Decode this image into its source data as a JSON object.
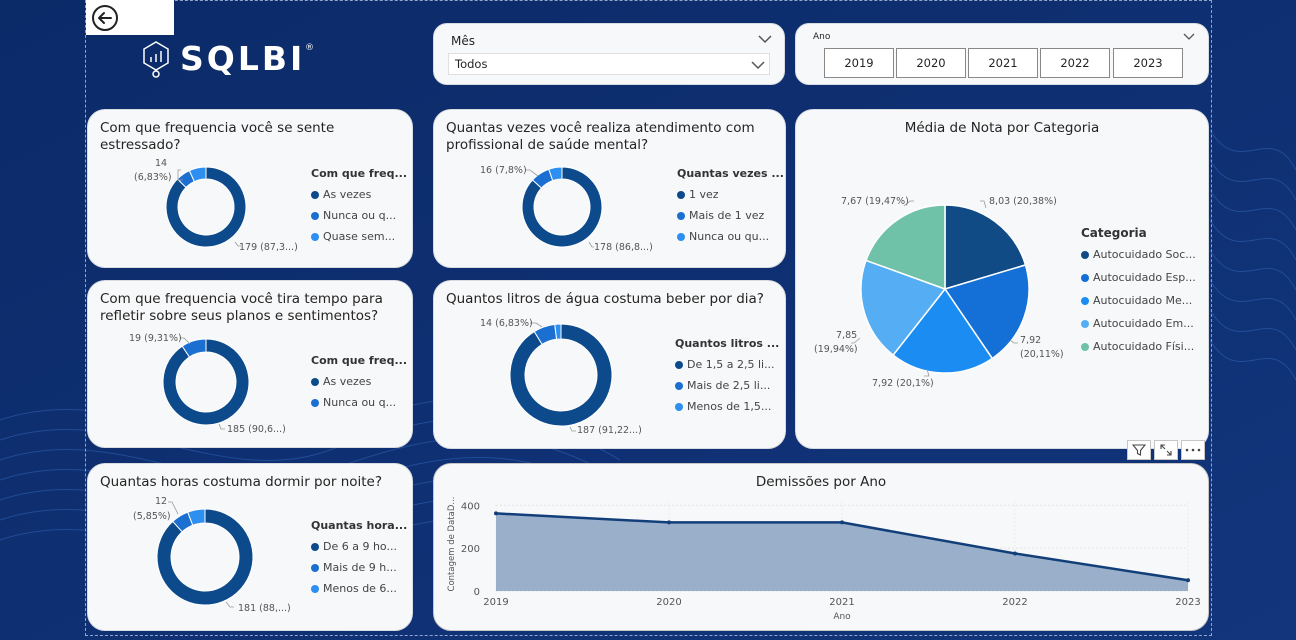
{
  "logo": {
    "text": "SQLBI",
    "mark": "®"
  },
  "month_slicer": {
    "title": "Mês",
    "value": "Todos"
  },
  "year_slicer": {
    "title": "Ano",
    "years": [
      "2019",
      "2020",
      "2021",
      "2022",
      "2023"
    ]
  },
  "stress": {
    "title": "Com que frequencia você se sente estressado?",
    "legend_title": "Com que freq...",
    "legend": [
      "As vezes",
      "Nunca ou q...",
      "Quase sem..."
    ],
    "label_small_a": "14",
    "label_small_b": "(6,83%)",
    "label_big": "179 (87,3...)"
  },
  "attendance": {
    "title": "Quantas vezes você realiza atendimento com profissional de saúde mental?",
    "legend_title": "Quantas vezes ...",
    "legend": [
      "1 vez",
      "Mais de 1 vez",
      "Nunca ou qu..."
    ],
    "label_small": "16 (7,8%)",
    "label_big": "178 (86,8...)"
  },
  "reflect": {
    "title": "Com que frequencia você tira tempo para refletir sobre seus planos e sentimentos?",
    "legend_title": "Com que freq...",
    "legend": [
      "As vezes",
      "Nunca ou q..."
    ],
    "label_small": "19 (9,31%)",
    "label_big": "185 (90,6...)"
  },
  "water": {
    "title": "Quantos litros de água costuma beber por dia?",
    "legend_title": "Quantos litros ...",
    "legend": [
      "De 1,5 a 2,5 li...",
      "Mais de 2,5 li...",
      "Menos de 1,5..."
    ],
    "label_small": "14 (6,83%)",
    "label_big": "187 (91,22...)"
  },
  "sleep": {
    "title": "Quantas horas costuma dormir por noite?",
    "legend_title": "Quantas hora...",
    "legend": [
      "De 6 a 9 ho...",
      "Mais de 9 h...",
      "Menos de 6..."
    ],
    "label_small_a": "12",
    "label_small_b": "(5,85%)",
    "label_big": "181 (88,...)"
  },
  "category_pie": {
    "title": "Média de Nota por Categoria",
    "legend_title": "Categoria",
    "legend": [
      "Autocuidado Soc...",
      "Autocuidado Esp...",
      "Autocuidado Me...",
      "Autocuidado Em...",
      "Autocuidado Físi..."
    ],
    "label_1": "8,03 (20,38%)",
    "label_2a": "7,92",
    "label_2b": "(20,11%)",
    "label_3": "7,92 (20,1%)",
    "label_4a": "7,85",
    "label_4b": "(19,94%)",
    "label_5": "7,67 (19,47%)"
  },
  "chart_data": [
    {
      "type": "pie",
      "title": "Com que frequencia você se sente estressado?",
      "categories": [
        "As vezes",
        "Nunca ou q...",
        "Quase sem..."
      ],
      "values": [
        179,
        12,
        14
      ]
    },
    {
      "type": "pie",
      "title": "Quantas vezes você realiza atendimento com profissional de saúde mental?",
      "categories": [
        "1 vez",
        "Mais de 1 vez",
        "Nunca ou qu..."
      ],
      "values": [
        178,
        16,
        11
      ]
    },
    {
      "type": "pie",
      "title": "Com que frequencia você tira tempo para refletir sobre seus planos e sentimentos?",
      "categories": [
        "As vezes",
        "Nunca ou q..."
      ],
      "values": [
        185,
        19
      ]
    },
    {
      "type": "pie",
      "title": "Quantos litros de água costuma beber por dia?",
      "categories": [
        "De 1,5 a 2,5 li...",
        "Mais de 2,5 li...",
        "Menos de 1,5..."
      ],
      "values": [
        187,
        14,
        4
      ]
    },
    {
      "type": "pie",
      "title": "Quantas horas costuma dormir por noite?",
      "categories": [
        "De 6 a 9 ho...",
        "Mais de 9 h...",
        "Menos de 6..."
      ],
      "values": [
        181,
        12,
        12
      ]
    },
    {
      "type": "pie",
      "title": "Média de Nota por Categoria",
      "categories": [
        "Autocuidado Soc...",
        "Autocuidado Esp...",
        "Autocuidado Me...",
        "Autocuidado Em...",
        "Autocuidado Físi..."
      ],
      "values": [
        8.03,
        7.92,
        7.92,
        7.85,
        7.67
      ]
    },
    {
      "type": "area",
      "title": "Demissões por Ano",
      "x": [
        2019,
        2020,
        2021,
        2022,
        2023
      ],
      "values": [
        362,
        320,
        320,
        175,
        50
      ],
      "xlabel": "Ano",
      "ylabel": "Contagem de DataD...",
      "xticks": [
        "2019",
        "2020",
        "2021",
        "2022",
        "2023"
      ],
      "yticks": [
        "0",
        "200",
        "400"
      ],
      "ylim": [
        0,
        420
      ]
    }
  ],
  "colors": {
    "donut_main": "#0d4a8c",
    "donut_2": "#1b6fd1",
    "donut_3": "#2d8ff0",
    "pie_1": "#114b85",
    "pie_2": "#1470d6",
    "pie_3": "#1b8cf2",
    "pie_4": "#55aef3",
    "pie_5": "#6fc1a8",
    "area_fill": "#8fa7c4",
    "area_line": "#123f7a"
  }
}
